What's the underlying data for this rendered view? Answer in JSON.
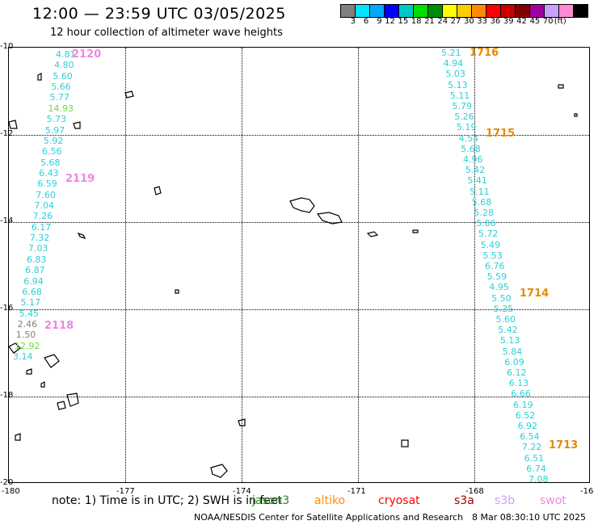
{
  "header": {
    "title": "12:00 — 23:59 UTC 03/05/2025",
    "subtitle": "12 hour collection of altimeter wave heights"
  },
  "scale": {
    "colors": [
      "#808080",
      "#00e5ff",
      "#00a8ff",
      "#0000ff",
      "#00c8c8",
      "#00dc00",
      "#008c00",
      "#ffff00",
      "#ffcc00",
      "#ff8c00",
      "#ff0000",
      "#c80000",
      "#800000",
      "#a000a0",
      "#c8a0ff",
      "#ff8cd2",
      "#000000"
    ],
    "labels": [
      "3",
      "6",
      "9",
      "12",
      "15",
      "18",
      "21",
      "24",
      "27",
      "30",
      "33",
      "36",
      "39",
      "42",
      "45",
      "70",
      "(ft)"
    ]
  },
  "axes": {
    "lat_labels": [
      "-10",
      "-12",
      "-14",
      "-16",
      "-18",
      "-20"
    ],
    "lon_labels": [
      "-180",
      "-177",
      "-174",
      "-171",
      "-168",
      "-16"
    ]
  },
  "tracks": {
    "left": [
      {
        "v": "4.81",
        "c": "#2ccfd6"
      },
      {
        "v": "4.80",
        "c": "#2ccfd6"
      },
      {
        "v": "5.60",
        "c": "#2ccfd6"
      },
      {
        "v": "5.66",
        "c": "#2ccfd6"
      },
      {
        "v": "5.77",
        "c": "#2ccfd6"
      },
      {
        "v": "14.93",
        "c": "#66dd33"
      },
      {
        "v": "5.73",
        "c": "#2ccfd6"
      },
      {
        "v": "5.97",
        "c": "#2ccfd6"
      },
      {
        "v": "5.92",
        "c": "#2ccfd6"
      },
      {
        "v": "6.56",
        "c": "#2ccfd6"
      },
      {
        "v": "5.68",
        "c": "#2ccfd6"
      },
      {
        "v": "6.43",
        "c": "#2ccfd6"
      },
      {
        "v": "6.59",
        "c": "#2ccfd6"
      },
      {
        "v": "7.60",
        "c": "#2ccfd6"
      },
      {
        "v": "7.04",
        "c": "#2ccfd6"
      },
      {
        "v": "7.26",
        "c": "#2ccfd6"
      },
      {
        "v": "6.17",
        "c": "#2ccfd6"
      },
      {
        "v": "7.32",
        "c": "#2ccfd6"
      },
      {
        "v": "7.03",
        "c": "#2ccfd6"
      },
      {
        "v": "6.83",
        "c": "#2ccfd6"
      },
      {
        "v": "6.87",
        "c": "#2ccfd6"
      },
      {
        "v": "6.94",
        "c": "#2ccfd6"
      },
      {
        "v": "6.68",
        "c": "#2ccfd6"
      },
      {
        "v": "5.17",
        "c": "#2ccfd6"
      },
      {
        "v": "5.45",
        "c": "#2ccfd6"
      },
      {
        "v": "2.46",
        "c": "#808080"
      },
      {
        "v": "1.50",
        "c": "#808080"
      },
      {
        "v": "12.92",
        "c": "#66dd33"
      },
      {
        "v": "3.14",
        "c": "#2ccfd6"
      }
    ],
    "right": [
      {
        "v": "5.21",
        "c": "#2ccfd6"
      },
      {
        "v": "4.94",
        "c": "#2ccfd6"
      },
      {
        "v": "5.03",
        "c": "#2ccfd6"
      },
      {
        "v": "5.13",
        "c": "#2ccfd6"
      },
      {
        "v": "5.11",
        "c": "#2ccfd6"
      },
      {
        "v": "5.79",
        "c": "#2ccfd6"
      },
      {
        "v": "5.26",
        "c": "#2ccfd6"
      },
      {
        "v": "5.19",
        "c": "#2ccfd6"
      },
      {
        "v": "4.54",
        "c": "#2ccfd6"
      },
      {
        "v": "5.68",
        "c": "#2ccfd6"
      },
      {
        "v": "4.96",
        "c": "#2ccfd6"
      },
      {
        "v": "5.42",
        "c": "#2ccfd6"
      },
      {
        "v": "5.41",
        "c": "#2ccfd6"
      },
      {
        "v": "5.11",
        "c": "#2ccfd6"
      },
      {
        "v": "5.68",
        "c": "#2ccfd6"
      },
      {
        "v": "5.28",
        "c": "#2ccfd6"
      },
      {
        "v": "5.86",
        "c": "#2ccfd6"
      },
      {
        "v": "5.72",
        "c": "#2ccfd6"
      },
      {
        "v": "5.49",
        "c": "#2ccfd6"
      },
      {
        "v": "5.53",
        "c": "#2ccfd6"
      },
      {
        "v": "6.76",
        "c": "#2ccfd6"
      },
      {
        "v": "5.59",
        "c": "#2ccfd6"
      },
      {
        "v": "4.95",
        "c": "#2ccfd6"
      },
      {
        "v": "5.50",
        "c": "#2ccfd6"
      },
      {
        "v": "5.35",
        "c": "#2ccfd6"
      },
      {
        "v": "5.60",
        "c": "#2ccfd6"
      },
      {
        "v": "5.42",
        "c": "#2ccfd6"
      },
      {
        "v": "5.13",
        "c": "#2ccfd6"
      },
      {
        "v": "5.84",
        "c": "#2ccfd6"
      },
      {
        "v": "6.09",
        "c": "#2ccfd6"
      },
      {
        "v": "6.12",
        "c": "#2ccfd6"
      },
      {
        "v": "6.13",
        "c": "#2ccfd6"
      },
      {
        "v": "6.66",
        "c": "#2ccfd6"
      },
      {
        "v": "6.19",
        "c": "#2ccfd6"
      },
      {
        "v": "6.52",
        "c": "#2ccfd6"
      },
      {
        "v": "6.92",
        "c": "#2ccfd6"
      },
      {
        "v": "6.54",
        "c": "#2ccfd6"
      },
      {
        "v": "7.22",
        "c": "#2ccfd6"
      },
      {
        "v": "6.51",
        "c": "#2ccfd6"
      },
      {
        "v": "6.74",
        "c": "#2ccfd6"
      },
      {
        "v": "7.08",
        "c": "#2ccfd6"
      }
    ]
  },
  "passes": [
    {
      "label": "2120",
      "color": "#ee88dd"
    },
    {
      "label": "2119",
      "color": "#ee88dd"
    },
    {
      "label": "2118",
      "color": "#ee88dd"
    },
    {
      "label": "1716",
      "color": "#e68a00"
    },
    {
      "label": "1715",
      "color": "#e68a00"
    },
    {
      "label": "1714",
      "color": "#e68a00"
    },
    {
      "label": "1713",
      "color": "#e68a00"
    }
  ],
  "legend": {
    "note": "note:  1) Time is in UTC;  2) SWH is in feet",
    "satellites": [
      {
        "name": "jason3",
        "color": "#228b22"
      },
      {
        "name": "altiko",
        "color": "#ff8c00"
      },
      {
        "name": "cryosat",
        "color": "#ff0000"
      },
      {
        "name": "s3a",
        "color": "#a00000"
      },
      {
        "name": "s3b",
        "color": "#c8a0ff"
      },
      {
        "name": "swot",
        "color": "#ee88dd"
      }
    ]
  },
  "footer": {
    "agency": "NOAA/NESDIS Center for Satellite Applications and Research",
    "date": "8 Mar 08:30:10 UTC 2025"
  }
}
